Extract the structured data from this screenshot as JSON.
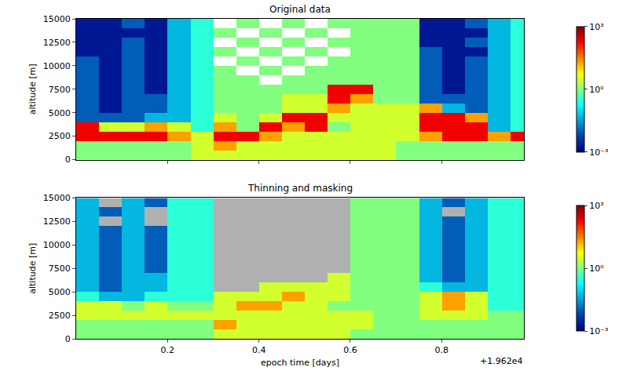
{
  "chart_data": [
    {
      "type": "heatmap",
      "title": "Original data",
      "y_label": "altitude [m]",
      "tick_labels": "y",
      "x": [
        19622.025,
        19622.075,
        19622.125,
        19622.175,
        19622.225,
        19622.275,
        19622.325,
        19622.375,
        19622.425,
        19622.475,
        19622.525,
        19622.575,
        19622.625,
        19622.675,
        19622.725,
        19622.775,
        19622.825,
        19622.875,
        19622.925,
        19622.975
      ],
      "y": [
        500,
        1500,
        2500,
        3500,
        4500,
        5500,
        6500,
        7500,
        8500,
        9500,
        10500,
        11500,
        12500,
        13500,
        14500
      ],
      "xlim": [
        19622.0,
        19622.98
      ],
      "xticks": [
        {
          "value": 19622.2,
          "label": "0.2"
        },
        {
          "value": 19622.4,
          "label": "0.4"
        },
        {
          "value": 19622.6,
          "label": "0.6"
        },
        {
          "value": 19622.8,
          "label": "0.8"
        }
      ],
      "ylim": [
        0,
        15000
      ],
      "yticks": [
        0,
        2500,
        5000,
        7500,
        10000,
        12500,
        15000
      ],
      "colorbar": {
        "range": [
          0.001,
          1000
        ],
        "ticks": [
          {
            "value": 0.001,
            "label": "10⁻³"
          },
          {
            "value": 1,
            "label": "10⁰"
          },
          {
            "value": 1000,
            "label": "10³"
          }
        ]
      },
      "cells": [
        [
          1,
          1,
          1,
          1,
          1,
          3,
          3,
          3,
          3,
          3,
          3,
          3,
          3,
          3,
          1,
          1,
          1,
          1,
          1,
          1
        ],
        [
          1,
          1,
          1,
          1,
          1,
          3,
          20,
          3,
          3,
          3,
          3,
          3,
          3,
          3,
          1,
          1,
          1,
          1,
          1,
          1
        ],
        [
          200,
          200,
          200,
          200,
          20,
          3,
          200,
          200,
          20,
          3,
          3,
          3,
          3,
          3,
          3,
          20,
          200,
          200,
          20,
          200
        ],
        [
          200,
          3,
          3,
          20,
          3,
          0.3,
          20,
          1,
          200,
          20,
          200,
          1,
          3,
          3,
          3,
          200,
          200,
          200,
          0.05,
          0.3
        ],
        [
          0.01,
          0.01,
          0.01,
          0.05,
          0.05,
          0.3,
          3,
          1,
          3,
          200,
          200,
          3,
          3,
          3,
          3,
          200,
          200,
          20,
          0.05,
          0.3
        ],
        [
          0.01,
          0.002,
          0.01,
          0.01,
          0.05,
          0.3,
          1,
          1,
          1,
          3,
          3,
          20,
          3,
          3,
          3,
          20,
          0.05,
          0.01,
          0.05,
          0.3
        ],
        [
          0.01,
          0.002,
          0.01,
          0.01,
          0.05,
          0.3,
          1,
          1,
          1,
          3,
          3,
          200,
          20,
          1,
          1,
          0.01,
          0.01,
          0.01,
          0.05,
          0.3
        ],
        [
          0.01,
          0.002,
          0.01,
          0.002,
          0.05,
          0.3,
          1,
          1,
          1,
          1,
          1,
          200,
          200,
          1,
          1,
          0.01,
          0.002,
          0.01,
          0.05,
          0.3
        ],
        [
          0.01,
          0.002,
          0.01,
          0.002,
          0.05,
          0.3,
          1,
          1,
          null,
          1,
          1,
          1,
          1,
          1,
          1,
          0.01,
          0.002,
          0.01,
          0.05,
          0.3
        ],
        [
          0.01,
          0.002,
          0.01,
          0.002,
          0.05,
          0.3,
          1,
          null,
          1,
          null,
          1,
          1,
          1,
          1,
          1,
          0.01,
          0.002,
          0.01,
          0.05,
          0.3
        ],
        [
          0.01,
          0.002,
          0.01,
          0.002,
          0.05,
          0.3,
          null,
          1,
          null,
          1,
          null,
          1,
          1,
          1,
          1,
          0.01,
          0.002,
          0.01,
          0.05,
          0.3
        ],
        [
          0.002,
          0.002,
          0.01,
          0.002,
          0.05,
          0.3,
          1,
          null,
          1,
          null,
          1,
          null,
          1,
          1,
          1,
          0.01,
          0.002,
          0.002,
          0.05,
          0.3
        ],
        [
          0.002,
          0.002,
          0.01,
          0.002,
          0.05,
          0.3,
          null,
          1,
          null,
          1,
          null,
          1,
          1,
          1,
          1,
          0.002,
          0.002,
          0.01,
          0.05,
          0.3
        ],
        [
          0.002,
          0.002,
          0.002,
          0.002,
          0.05,
          0.3,
          1,
          null,
          1,
          null,
          1,
          null,
          1,
          1,
          1,
          0.002,
          0.002,
          0.002,
          0.05,
          0.3
        ],
        [
          0.002,
          0.002,
          0.01,
          0.002,
          0.05,
          0.3,
          null,
          1,
          null,
          1,
          null,
          1,
          1,
          1,
          1,
          0.002,
          0.002,
          0.01,
          0.05,
          0.3
        ]
      ]
    },
    {
      "type": "heatmap",
      "title": "Thinning and masking",
      "x_label": "epoch time [days]",
      "y_label": "altitude [m]",
      "annotation": "+1.962e4",
      "x": [
        19622.025,
        19622.075,
        19622.125,
        19622.175,
        19622.225,
        19622.275,
        19622.325,
        19622.375,
        19622.425,
        19622.475,
        19622.525,
        19622.575,
        19622.625,
        19622.675,
        19622.725,
        19622.775,
        19622.825,
        19622.875,
        19622.925,
        19622.975
      ],
      "y": [
        500,
        1500,
        2500,
        3500,
        4500,
        5500,
        6500,
        7500,
        8500,
        9500,
        10500,
        11500,
        12500,
        13500,
        14500
      ],
      "xlim": [
        19622.0,
        19622.98
      ],
      "xticks": [
        {
          "value": 19622.2,
          "label": "0.2"
        },
        {
          "value": 19622.4,
          "label": "0.4"
        },
        {
          "value": 19622.6,
          "label": "0.6"
        },
        {
          "value": 19622.8,
          "label": "0.8"
        }
      ],
      "ylim": [
        0,
        15000
      ],
      "yticks": [
        0,
        2500,
        5000,
        7500,
        10000,
        12500,
        15000
      ],
      "colorbar": {
        "range": [
          0.001,
          1000
        ],
        "ticks": [
          {
            "value": 0.001,
            "label": "10⁻³"
          },
          {
            "value": 1,
            "label": "10⁰"
          },
          {
            "value": 1000,
            "label": "10³"
          }
        ]
      },
      "cells": [
        [
          1,
          1,
          1,
          1,
          1,
          1,
          3,
          3,
          3,
          3,
          3,
          3,
          1,
          1,
          1,
          1,
          1,
          1,
          1,
          1
        ],
        [
          1,
          1,
          1,
          1,
          1,
          1,
          20,
          3,
          3,
          3,
          3,
          3,
          3,
          1,
          1,
          1,
          1,
          1,
          1,
          1
        ],
        [
          3,
          3,
          3,
          3,
          3,
          3,
          3,
          3,
          3,
          3,
          3,
          3,
          3,
          1,
          1,
          3,
          3,
          3,
          1,
          1
        ],
        [
          3,
          3,
          1,
          3,
          1,
          1,
          3,
          20,
          20,
          3,
          3,
          1,
          1,
          1,
          1,
          3,
          20,
          3,
          0.3,
          0.3
        ],
        [
          0.3,
          0.05,
          0.05,
          0.3,
          0.3,
          0.3,
          3,
          3,
          3,
          20,
          3,
          3,
          1,
          1,
          1,
          3,
          20,
          3,
          0.3,
          0.3
        ],
        [
          0.05,
          0.01,
          0.05,
          0.05,
          0.3,
          0.3,
          null,
          null,
          3,
          3,
          3,
          3,
          1,
          1,
          1,
          0.3,
          0.05,
          0.05,
          0.3,
          0.3
        ],
        [
          0.05,
          0.01,
          0.05,
          0.05,
          0.3,
          0.3,
          null,
          null,
          null,
          null,
          null,
          3,
          1,
          1,
          1,
          0.05,
          0.01,
          0.05,
          0.3,
          0.3
        ],
        [
          0.05,
          0.01,
          0.05,
          0.01,
          0.3,
          0.3,
          null,
          null,
          null,
          null,
          null,
          null,
          1,
          1,
          1,
          0.05,
          0.01,
          0.05,
          0.3,
          0.3
        ],
        [
          0.05,
          0.01,
          0.05,
          0.01,
          0.3,
          0.3,
          null,
          null,
          null,
          null,
          null,
          null,
          1,
          1,
          1,
          0.05,
          0.01,
          0.05,
          0.3,
          0.3
        ],
        [
          0.05,
          0.01,
          0.05,
          0.01,
          0.3,
          0.3,
          null,
          null,
          null,
          null,
          null,
          null,
          1,
          1,
          1,
          0.05,
          0.01,
          0.05,
          0.3,
          0.3
        ],
        [
          0.05,
          0.01,
          0.05,
          0.01,
          0.3,
          0.3,
          null,
          null,
          null,
          null,
          null,
          null,
          1,
          1,
          1,
          0.05,
          0.01,
          0.05,
          0.3,
          0.3
        ],
        [
          0.05,
          0.01,
          0.05,
          0.01,
          0.3,
          0.3,
          null,
          null,
          null,
          null,
          null,
          null,
          1,
          1,
          1,
          0.05,
          0.01,
          0.05,
          0.3,
          0.3
        ],
        [
          0.05,
          null,
          0.05,
          null,
          0.3,
          0.3,
          null,
          null,
          null,
          null,
          null,
          null,
          1,
          1,
          1,
          0.05,
          0.01,
          0.05,
          0.3,
          0.3
        ],
        [
          0.05,
          0.01,
          0.05,
          null,
          0.3,
          0.3,
          null,
          null,
          null,
          null,
          null,
          null,
          1,
          1,
          1,
          0.05,
          null,
          0.05,
          0.3,
          0.3
        ],
        [
          0.05,
          null,
          0.05,
          0.01,
          0.3,
          0.3,
          null,
          null,
          null,
          null,
          null,
          null,
          1,
          1,
          1,
          0.05,
          0.01,
          0.05,
          0.3,
          0.3
        ]
      ]
    }
  ]
}
